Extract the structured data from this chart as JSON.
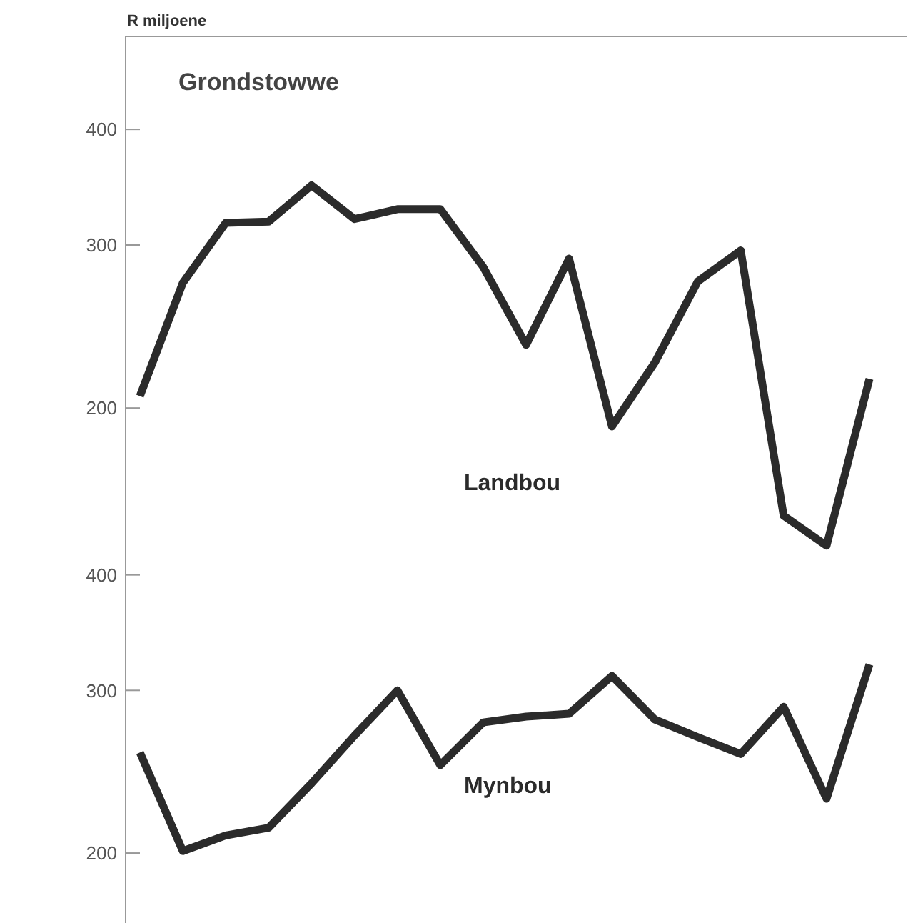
{
  "chart_data": [
    {
      "type": "line",
      "title": "Grondstowwe",
      "ylabel": "R miljoene",
      "categories": [
        null,
        null,
        null,
        null,
        null,
        null,
        null,
        null,
        null,
        null,
        null,
        null,
        null,
        null,
        null,
        null,
        null,
        null
      ],
      "series": [
        {
          "name": "Landbou",
          "color": "#2b2b2b",
          "values": [
            206,
            273,
            317,
            318,
            348,
            320,
            328,
            328,
            284,
            234,
            290,
            191,
            224,
            274,
            296,
            153,
            142,
            215
          ]
        }
      ],
      "ylim": [
        137,
        505
      ],
      "yticks": [
        200,
        300,
        400
      ],
      "log": true,
      "tick_labels": "y",
      "marker": "none",
      "line_style": "solid"
    },
    {
      "type": "line",
      "categories": [
        null,
        null,
        null,
        null,
        null,
        null,
        null,
        null,
        null,
        null,
        null,
        null,
        null,
        null,
        null,
        null,
        null,
        null
      ],
      "series": [
        {
          "name": "Mynbou",
          "color": "#2b2b2b",
          "values": [
            257,
            201,
            209,
            213,
            238,
            268,
            300,
            249,
            277,
            281,
            283,
            311,
            279,
            267,
            256,
            288,
            229,
            320
          ]
        }
      ],
      "ylim": [
        168,
        415
      ],
      "yticks": [
        200,
        300,
        400
      ],
      "log": true,
      "tick_labels": "y",
      "marker": "none",
      "line_style": "solid"
    }
  ]
}
